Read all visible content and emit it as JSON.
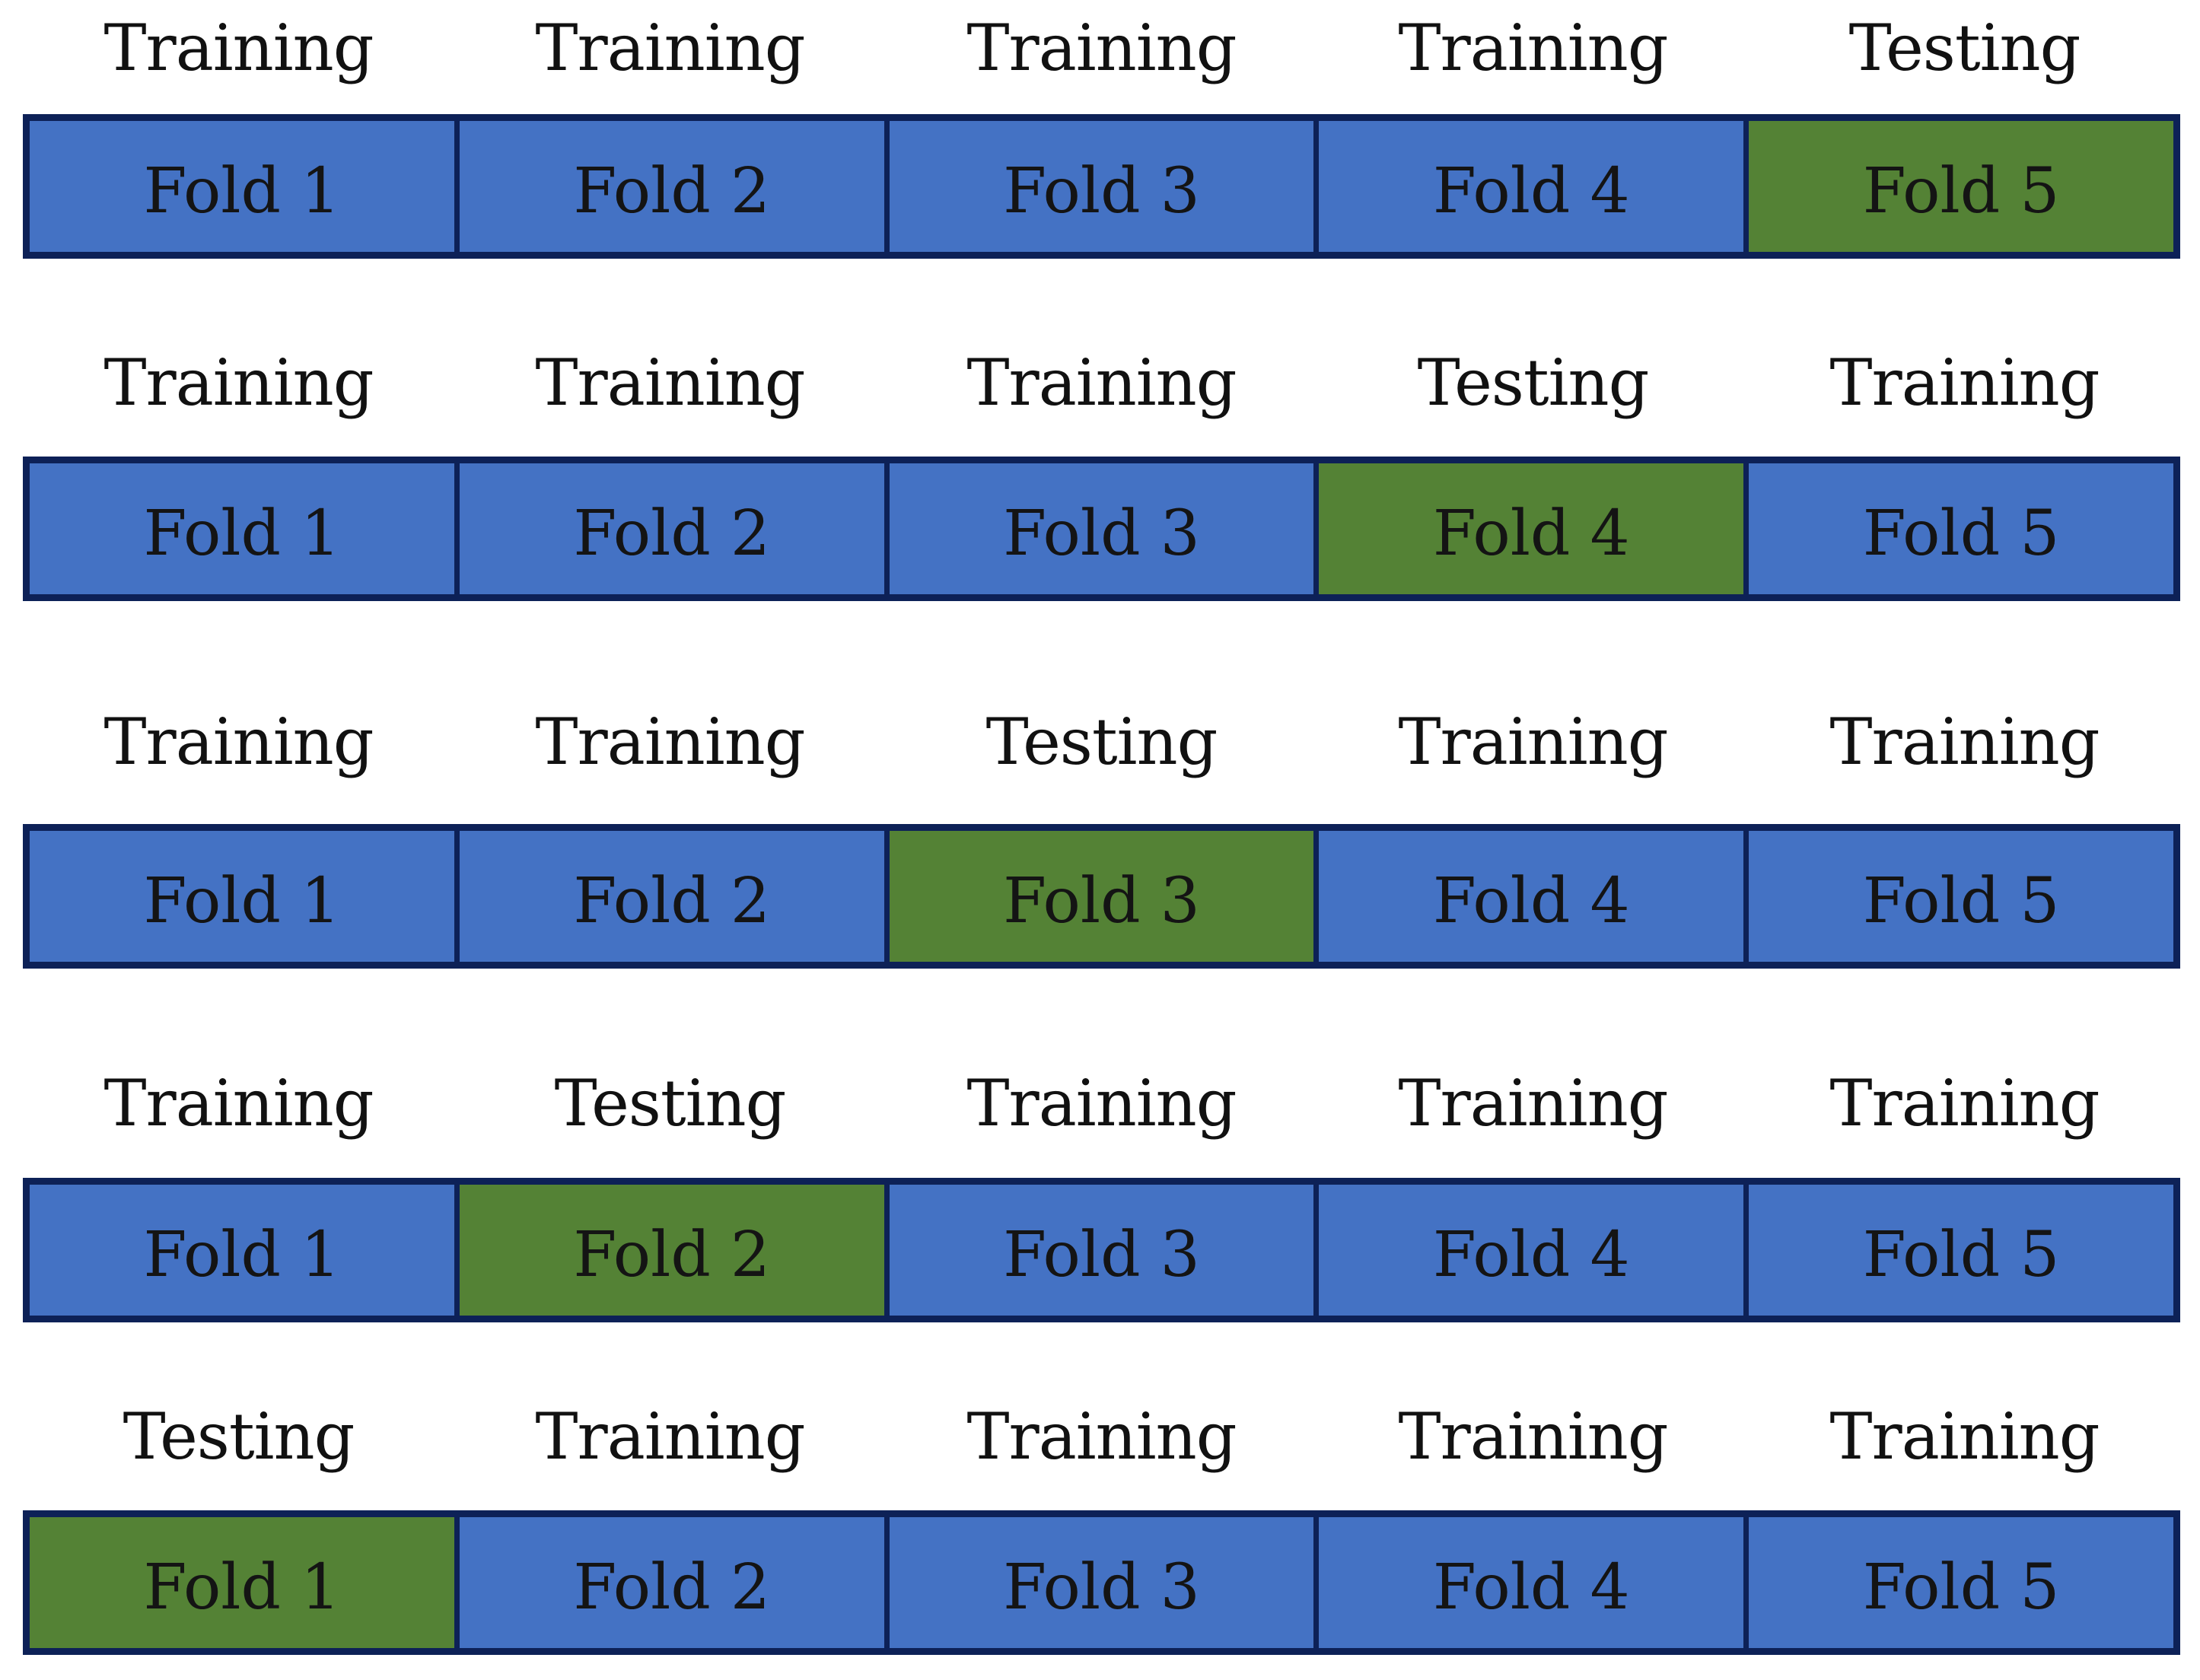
{
  "colors": {
    "training_fill": "#4472c4",
    "testing_fill": "#548235",
    "border": "#0d2157"
  },
  "rows": [
    {
      "labels": [
        "Training",
        "Training",
        "Training",
        "Training",
        "Testing"
      ],
      "folds": [
        "Fold 1",
        "Fold 2",
        "Fold 3",
        "Fold 4",
        "Fold 5"
      ],
      "test_fold": 5
    },
    {
      "labels": [
        "Training",
        "Training",
        "Training",
        "Testing",
        "Training"
      ],
      "folds": [
        "Fold 1",
        "Fold 2",
        "Fold 3",
        "Fold 4",
        "Fold 5"
      ],
      "test_fold": 4
    },
    {
      "labels": [
        "Training",
        "Training",
        "Testing",
        "Training",
        "Training"
      ],
      "folds": [
        "Fold 1",
        "Fold 2",
        "Fold 3",
        "Fold 4",
        "Fold 5"
      ],
      "test_fold": 3
    },
    {
      "labels": [
        "Training",
        "Testing",
        "Training",
        "Training",
        "Training"
      ],
      "folds": [
        "Fold 1",
        "Fold 2",
        "Fold 3",
        "Fold 4",
        "Fold 5"
      ],
      "test_fold": 2
    },
    {
      "labels": [
        "Testing",
        "Training",
        "Training",
        "Training",
        "Training"
      ],
      "folds": [
        "Fold 1",
        "Fold 2",
        "Fold 3",
        "Fold 4",
        "Fold 5"
      ],
      "test_fold": 1
    }
  ]
}
